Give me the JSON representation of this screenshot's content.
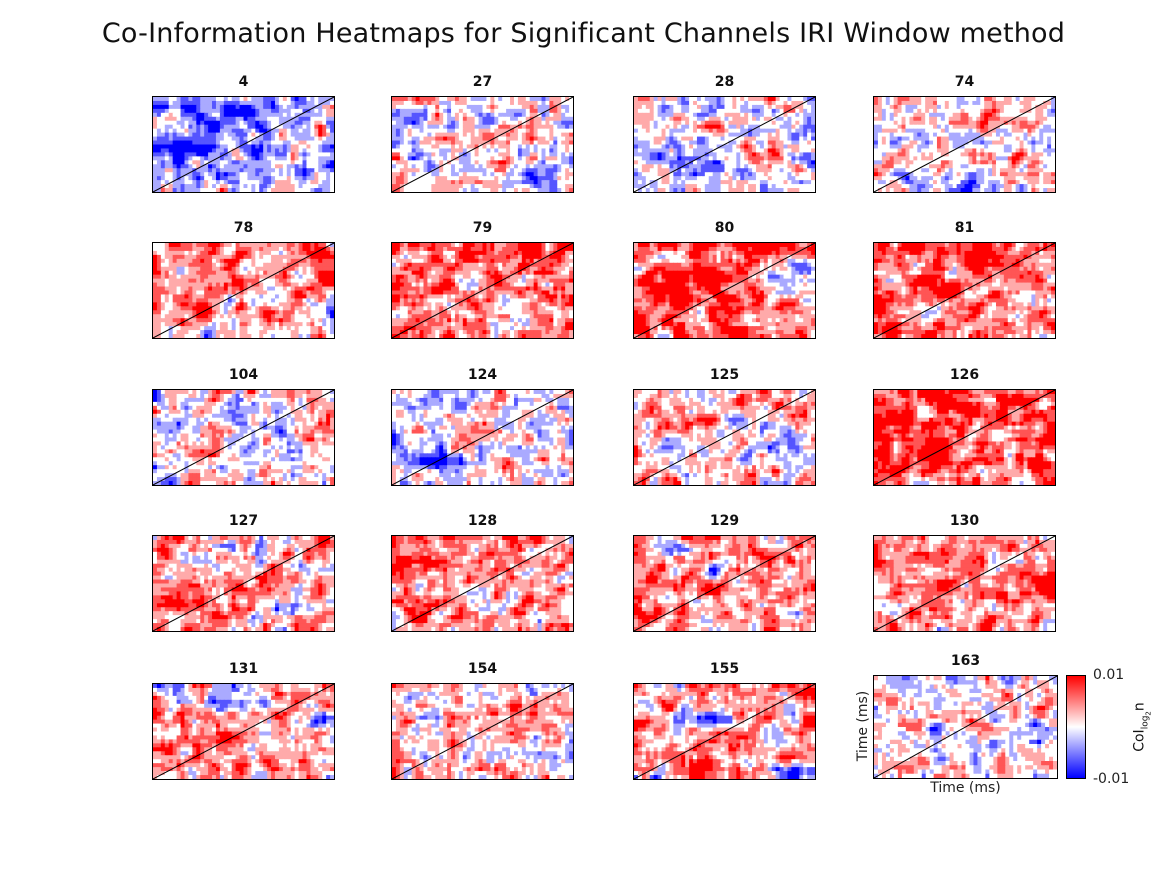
{
  "figure": {
    "title": "Co-Information Heatmaps for Significant Channels IRI Window method"
  },
  "colors": {
    "high": "#ff0000",
    "mid": "#ffffff",
    "low": "#0000ff",
    "diagonal": "#000000"
  },
  "chart_data": {
    "type": "heatmap",
    "colormap": "blue-white-red (diverging)",
    "clim": [
      -0.01,
      0.01
    ],
    "grid": false,
    "diagonal_line": true,
    "channels": [
      "4",
      "27",
      "28",
      "74",
      "78",
      "79",
      "80",
      "81",
      "104",
      "124",
      "125",
      "126",
      "127",
      "128",
      "129",
      "130",
      "131",
      "154",
      "155",
      "163"
    ],
    "xlabel": "Time (ms)",
    "ylabel": "Time (ms)",
    "colorbar": {
      "label_main": "CoI",
      "label_sub": "log",
      "label_subsub": "2",
      "label_tail": "n",
      "ticks": [
        "0.01",
        "-0.01"
      ]
    }
  }
}
